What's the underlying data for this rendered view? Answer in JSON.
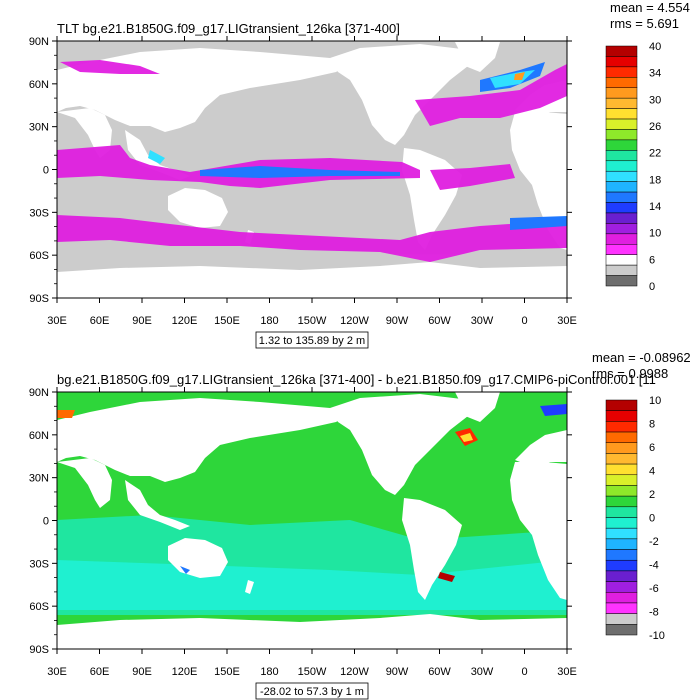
{
  "panels": [
    {
      "title": "TLT bg.e21.B1850G.f09_g17.LIGtransient_126ka [371-400]",
      "mean": "mean = 4.554",
      "rms": "rms = 5.691",
      "range_label": "1.32 to 135.89 by 2 m",
      "lat_ticks": [
        "90N",
        "60N",
        "30N",
        "0",
        "30S",
        "60S",
        "90S"
      ],
      "lon_ticks": [
        "30E",
        "60E",
        "90E",
        "120E",
        "150E",
        "180",
        "150W",
        "120W",
        "90W",
        "60W",
        "30W",
        "0",
        "30E"
      ],
      "colorbar": {
        "labels": [
          "40",
          "34",
          "30",
          "26",
          "22",
          "18",
          "14",
          "10",
          "6",
          "0"
        ],
        "colors": [
          "#b40000",
          "#e60000",
          "#ff2a00",
          "#ff6a00",
          "#ff9a1e",
          "#ffb930",
          "#ffe030",
          "#d9f02a",
          "#8ee82a",
          "#2ed63a",
          "#1fe6a0",
          "#1ff0d0",
          "#30e0ff",
          "#1fb4ff",
          "#1f78ff",
          "#1f3cff",
          "#6a1fd0",
          "#a01fe0",
          "#e01fe0",
          "#ff33ff",
          "#ffffff",
          "#cccccc",
          "#6e6e6e"
        ]
      }
    },
    {
      "title": "bg.e21.B1850G.f09_g17.LIGtransient_126ka [371-400] - b.e21.B1850.f09_g17.CMIP6-piControl.001 [11",
      "mean": "mean = -0.08962",
      "rms": "rms = 0.9988",
      "range_label": "-28.02 to 57.3 by 1 m",
      "lat_ticks": [
        "90N",
        "60N",
        "30N",
        "0",
        "30S",
        "60S",
        "90S"
      ],
      "lon_ticks": [
        "30E",
        "60E",
        "90E",
        "120E",
        "150E",
        "180",
        "150W",
        "120W",
        "90W",
        "60W",
        "30W",
        "0",
        "30E"
      ],
      "colorbar": {
        "labels": [
          "10",
          "8",
          "6",
          "4",
          "2",
          "0",
          "-2",
          "-4",
          "-6",
          "-8",
          "-10"
        ],
        "colors": [
          "#b40000",
          "#e60000",
          "#ff2a00",
          "#ff6a00",
          "#ff9a1e",
          "#ffb930",
          "#ffe030",
          "#d9f02a",
          "#8ee82a",
          "#2ed63a",
          "#1fe6a0",
          "#1ff0d0",
          "#30e0ff",
          "#1fb4ff",
          "#1f78ff",
          "#1f3cff",
          "#6a1fd0",
          "#a01fe0",
          "#e01fe0",
          "#ff33ff",
          "#cccccc",
          "#6e6e6e"
        ]
      }
    }
  ]
}
